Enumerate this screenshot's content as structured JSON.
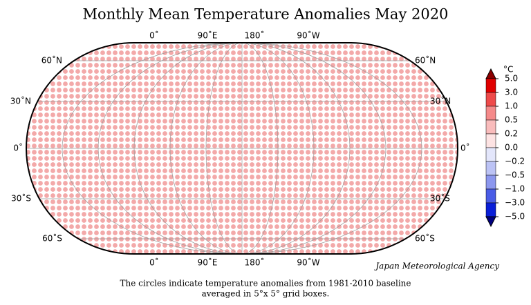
{
  "title": "Monthly Mean Temperature Anomalies May 2020",
  "longitude_labels": [
    "0˚",
    "90˚E",
    "180˚",
    "90˚W"
  ],
  "latitude_labels": [
    "60˚N",
    "30˚N",
    "0˚",
    "30˚S",
    "60˚S"
  ],
  "colorbar": {
    "unit": "°C",
    "ticks": [
      {
        "value": 5,
        "label": "5.0"
      },
      {
        "value": 3,
        "label": "3.0"
      },
      {
        "value": 1,
        "label": "1.0"
      },
      {
        "value": 0.5,
        "label": "0.5"
      },
      {
        "value": 0.2,
        "label": "0.2"
      },
      {
        "value": 0,
        "label": "0.0"
      },
      {
        "value": -0.2,
        "label": "−0.2"
      },
      {
        "value": -0.5,
        "label": "−0.5"
      },
      {
        "value": -1,
        "label": "−1.0"
      },
      {
        "value": -3,
        "label": "−3.0"
      },
      {
        "value": -5,
        "label": "−5.0"
      }
    ],
    "colors": [
      "#8b0000",
      "#e00000",
      "#ee4a4a",
      "#f58a8a",
      "#f9bcbc",
      "#fde3e3",
      "#e3e6fb",
      "#bcc3f5",
      "#8c97ee",
      "#4a5ce6",
      "#0a1fd8",
      "#000080"
    ]
  },
  "credit": "Japan Meteorological Agency",
  "caption": [
    "The circles indicate temperature anomalies from 1981-2010 baseline",
    "averaged in 5°x 5° grid boxes."
  ]
}
